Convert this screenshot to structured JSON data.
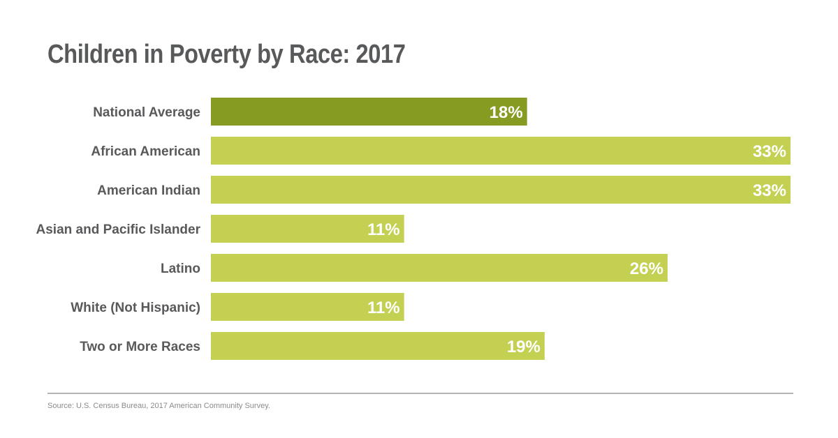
{
  "title": "Children in Poverty by Race: 2017",
  "source": "Source: U.S. Census Bureau, 2017 American Community Survey.",
  "colors": {
    "highlight_bar": "#859b22",
    "bar": "#c4d051",
    "text": "#58595b",
    "value_text": "#ffffff",
    "divider": "#b3b3b3",
    "source_text": "#8a8a8a"
  },
  "chart_data": {
    "type": "bar",
    "orientation": "horizontal",
    "title": "Children in Poverty by Race: 2017",
    "xlabel": "",
    "ylabel": "",
    "categories": [
      "National Average",
      "African American",
      "American Indian",
      "Asian and Pacific Islander",
      "Latino",
      "White (Not Hispanic)",
      "Two or More Races"
    ],
    "values": [
      18,
      33,
      33,
      11,
      26,
      11,
      19
    ],
    "value_labels": [
      "18%",
      "33%",
      "33%",
      "11%",
      "26%",
      "11%",
      "19%"
    ],
    "highlight": [
      true,
      false,
      false,
      false,
      false,
      false,
      false
    ],
    "unit": "%",
    "xlim": [
      0,
      33
    ],
    "grid": false,
    "legend": "none"
  }
}
